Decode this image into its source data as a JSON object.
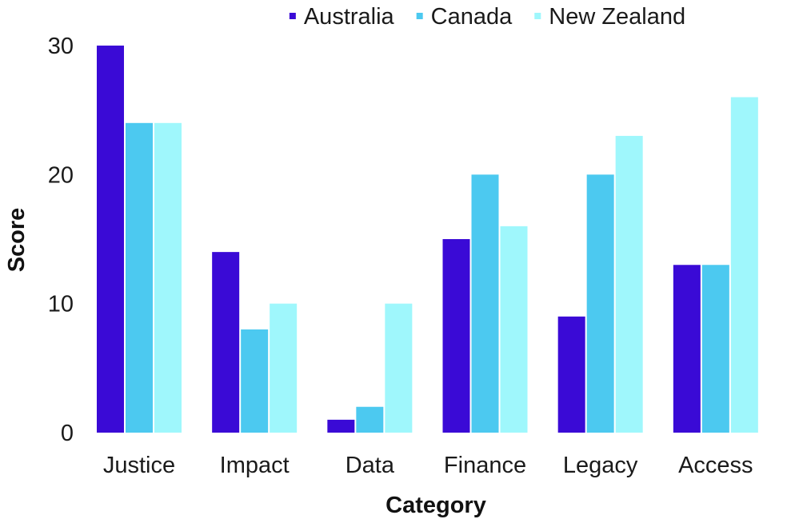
{
  "chart_data": {
    "type": "bar",
    "title": "",
    "xlabel": "Category",
    "ylabel": "Score",
    "categories": [
      "Justice",
      "Impact",
      "Data",
      "Finance",
      "Legacy",
      "Access"
    ],
    "series": [
      {
        "name": "Australia",
        "color": "#3a0ad6",
        "values": [
          30,
          14,
          1,
          15,
          9,
          13
        ]
      },
      {
        "name": "Canada",
        "color": "#4cc9f0",
        "values": [
          24,
          8,
          2,
          20,
          20,
          13
        ]
      },
      {
        "name": "New Zealand",
        "color": "#9ff7fc",
        "values": [
          24,
          10,
          10,
          16,
          23,
          26
        ]
      }
    ],
    "ylim": [
      0,
      30
    ],
    "yticks": [
      0,
      10,
      20,
      30
    ],
    "grid": false,
    "legend_position": "top-center"
  }
}
